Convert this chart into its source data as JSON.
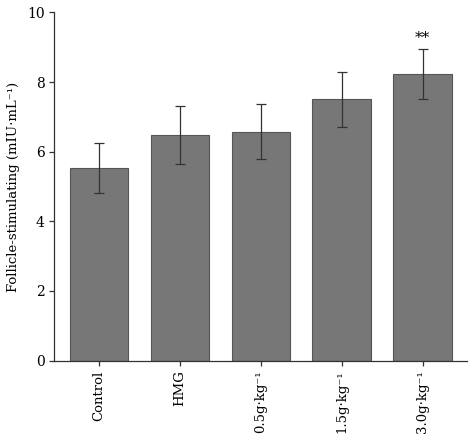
{
  "categories": [
    "Control",
    "HMG",
    "0.5g·kg⁻¹",
    "1.5g·kg⁻¹",
    "3.0g·kg⁻¹"
  ],
  "values": [
    5.52,
    6.48,
    6.58,
    7.5,
    8.22
  ],
  "errors": [
    0.72,
    0.82,
    0.8,
    0.78,
    0.72
  ],
  "bar_color": "#777777",
  "bar_edge_color": "#555555",
  "ylabel": "Follicle-stimulating (mIU·mL⁻¹)",
  "ylim": [
    0,
    10
  ],
  "yticks": [
    0,
    2,
    4,
    6,
    8,
    10
  ],
  "significance": [
    false,
    false,
    false,
    false,
    true
  ],
  "sig_label": "**",
  "bar_width": 0.72,
  "background_color": "#ffffff"
}
